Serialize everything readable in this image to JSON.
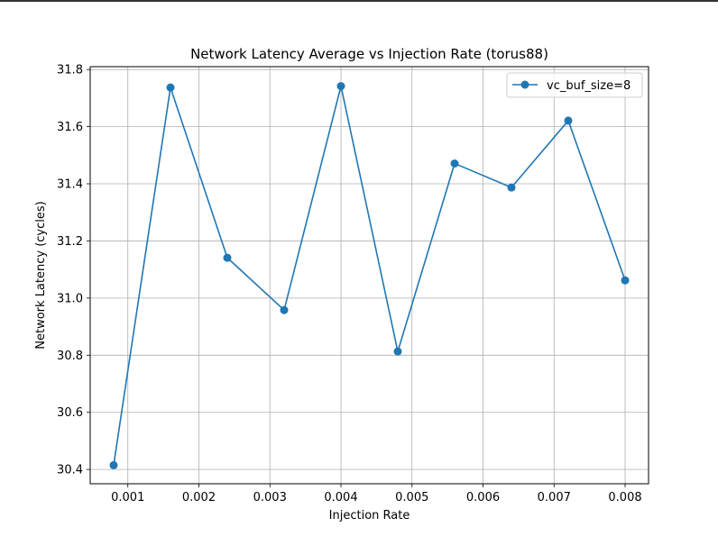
{
  "chart_data": {
    "type": "line",
    "title": "Network Latency Average vs Injection Rate (torus88)",
    "xlabel": "Injection Rate",
    "ylabel": "Network Latency (cycles)",
    "xlim": [
      0.00047,
      0.00833
    ],
    "ylim": [
      30.35,
      31.81
    ],
    "xticks": [
      0.001,
      0.002,
      0.003,
      0.004,
      0.005,
      0.006,
      0.007,
      0.008
    ],
    "xtick_labels": [
      "0.001",
      "0.002",
      "0.003",
      "0.004",
      "0.005",
      "0.006",
      "0.007",
      "0.008"
    ],
    "yticks": [
      30.4,
      30.6,
      30.8,
      31.0,
      31.2,
      31.4,
      31.6,
      31.8
    ],
    "ytick_labels": [
      "30.4",
      "30.6",
      "30.8",
      "31.0",
      "31.2",
      "31.4",
      "31.6",
      "31.8"
    ],
    "grid": true,
    "legend_position": "top-right",
    "series": [
      {
        "name": "vc_buf_size=8",
        "color": "#1f77b4",
        "marker": "circle",
        "x": [
          0.0008,
          0.0016,
          0.0024,
          0.0032,
          0.004,
          0.0048,
          0.0056,
          0.0064,
          0.0072,
          0.008
        ],
        "y": [
          30.415,
          31.737,
          31.141,
          30.958,
          31.742,
          30.813,
          31.471,
          31.387,
          31.621,
          31.062
        ]
      }
    ]
  }
}
